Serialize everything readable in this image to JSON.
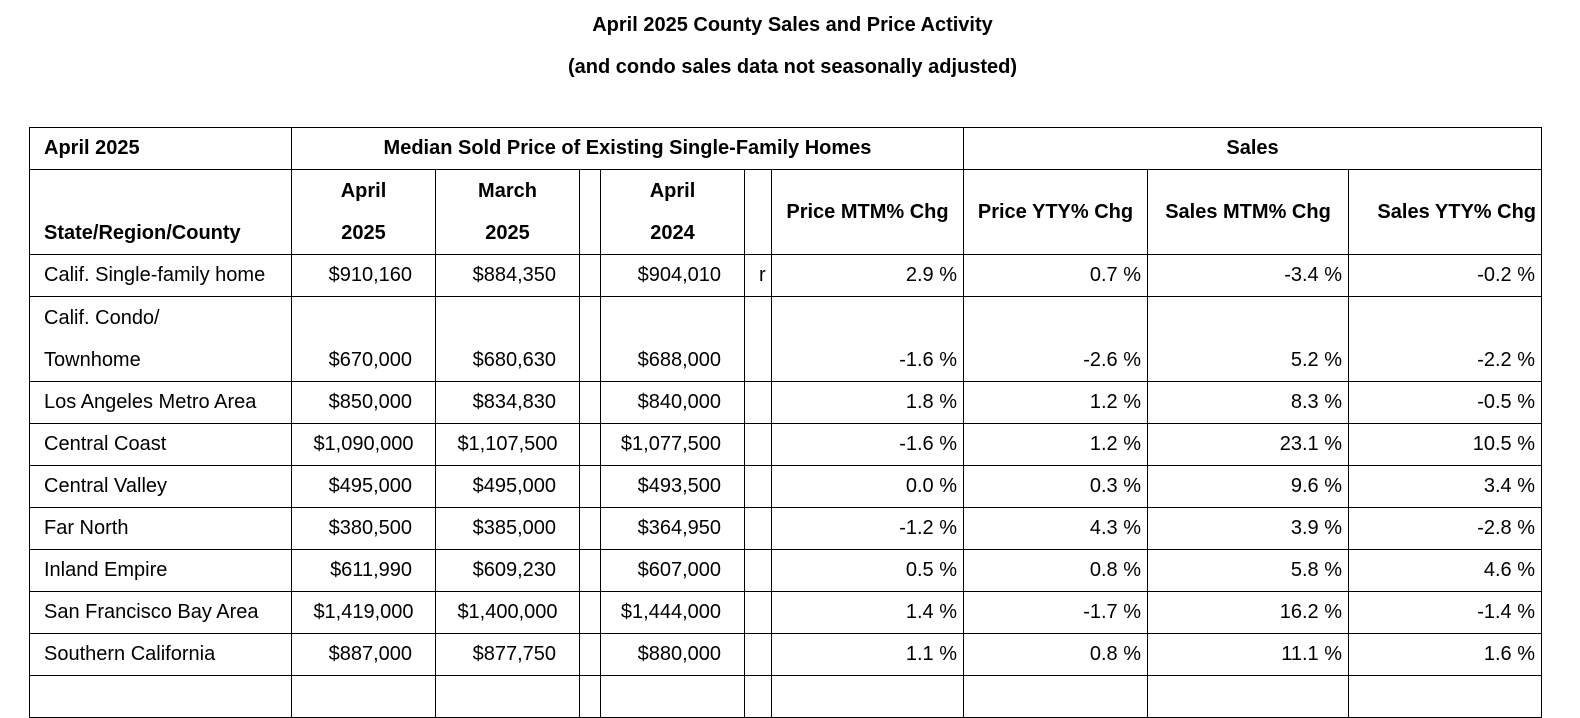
{
  "title": "April 2025 County Sales and Price Activity",
  "subtitle": "(and condo sales data not seasonally adjusted)",
  "header": {
    "corner": "April 2025",
    "median_group": "Median Sold Price of Existing Single-Family Homes",
    "sales_group": "Sales",
    "region_col": "State/Region/County",
    "col_apr2025_line1": "April",
    "col_apr2025_line2": "2025",
    "col_mar2025_line1": "March",
    "col_mar2025_line2": "2025",
    "col_apr2024_line1": "April",
    "col_apr2024_line2": "2024",
    "price_mtm": "Price MTM% Chg",
    "price_yty": "Price YTY% Chg",
    "sales_mtm": "Sales MTM% Chg",
    "sales_yty": "Sales YTY% Chg"
  },
  "rows": [
    {
      "name": "Calif. Single-family home",
      "apr2025": "$910,160",
      "mar2025": "$884,350",
      "apr2024": "$904,010",
      "flag": "r",
      "price_mtm": "2.9 %",
      "price_yty": "0.7 %",
      "sales_mtm": "-3.4 %",
      "sales_yty": "-0.2 %"
    },
    {
      "name_line1": "Calif. Condo/",
      "name_line2": "Townhome",
      "apr2025": "$670,000",
      "mar2025": "$680,630",
      "apr2024": "$688,000",
      "flag": "",
      "price_mtm": "-1.6 %",
      "price_yty": "-2.6 %",
      "sales_mtm": "5.2 %",
      "sales_yty": "-2.2 %"
    },
    {
      "name": "Los Angeles Metro Area",
      "apr2025": "$850,000",
      "mar2025": "$834,830",
      "apr2024": "$840,000",
      "flag": "",
      "price_mtm": "1.8 %",
      "price_yty": "1.2 %",
      "sales_mtm": "8.3 %",
      "sales_yty": "-0.5 %"
    },
    {
      "name": "Central Coast",
      "apr2025": "$1,090,000",
      "mar2025": "$1,107,500",
      "apr2024": "$1,077,500",
      "flag": "",
      "price_mtm": "-1.6 %",
      "price_yty": "1.2 %",
      "sales_mtm": "23.1 %",
      "sales_yty": "10.5 %"
    },
    {
      "name": "Central Valley",
      "apr2025": "$495,000",
      "mar2025": "$495,000",
      "apr2024": "$493,500",
      "flag": "",
      "price_mtm": "0.0 %",
      "price_yty": "0.3 %",
      "sales_mtm": "9.6 %",
      "sales_yty": "3.4 %"
    },
    {
      "name": "Far North",
      "apr2025": "$380,500",
      "mar2025": "$385,000",
      "apr2024": "$364,950",
      "flag": "",
      "price_mtm": "-1.2 %",
      "price_yty": "4.3 %",
      "sales_mtm": "3.9 %",
      "sales_yty": "-2.8 %"
    },
    {
      "name": "Inland Empire",
      "apr2025": "$611,990",
      "mar2025": "$609,230",
      "apr2024": "$607,000",
      "flag": "",
      "price_mtm": "0.5 %",
      "price_yty": "0.8 %",
      "sales_mtm": "5.8 %",
      "sales_yty": "4.6 %"
    },
    {
      "name": "San Francisco Bay Area",
      "apr2025": "$1,419,000",
      "mar2025": "$1,400,000",
      "apr2024": "$1,444,000",
      "flag": "",
      "price_mtm": "1.4 %",
      "price_yty": "-1.7 %",
      "sales_mtm": "16.2 %",
      "sales_yty": "-1.4 %"
    },
    {
      "name": "Southern California",
      "apr2025": "$887,000",
      "mar2025": "$877,750",
      "apr2024": "$880,000",
      "flag": "",
      "price_mtm": "1.1 %",
      "price_yty": "0.8 %",
      "sales_mtm": "11.1 %",
      "sales_yty": "1.6 %"
    }
  ]
}
